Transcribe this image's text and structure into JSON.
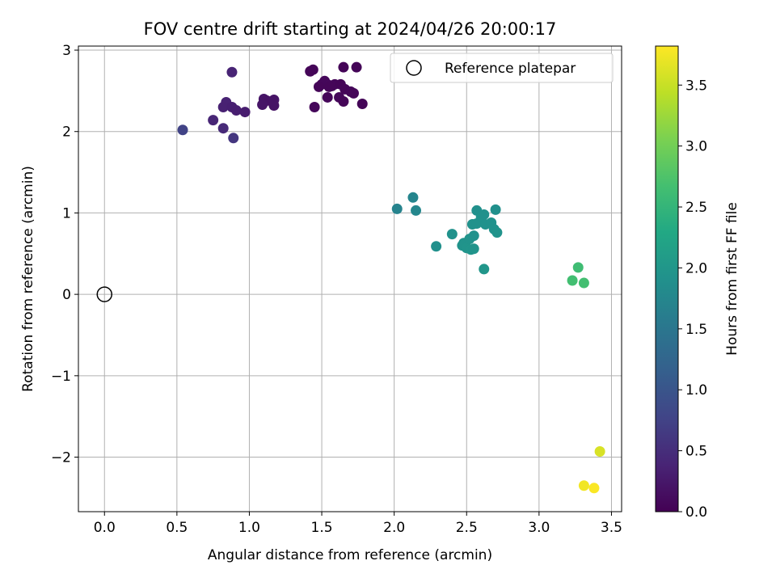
{
  "chart_data": {
    "type": "scatter",
    "title": "FOV centre drift starting at 2024/04/26 20:00:17",
    "xlabel": "Angular distance from reference (arcmin)",
    "ylabel": "Rotation from reference (arcmin)",
    "xlim": [
      -0.18,
      3.57
    ],
    "ylim": [
      -2.67,
      3.05
    ],
    "xticks": [
      0.0,
      0.5,
      1.0,
      1.5,
      2.0,
      2.5,
      3.0,
      3.5
    ],
    "xtick_labels": [
      "0.0",
      "0.5",
      "1.0",
      "1.5",
      "2.0",
      "2.5",
      "3.0",
      "3.5"
    ],
    "yticks": [
      -2,
      -1,
      0,
      1,
      2,
      3
    ],
    "ytick_labels": [
      "−2",
      "−1",
      "0",
      "1",
      "2",
      "3"
    ],
    "grid": true,
    "legend": {
      "position": "top-right",
      "entries": [
        "Reference platepar"
      ]
    },
    "reference_point": {
      "x": 0.0,
      "y": 0.0
    },
    "colorbar": {
      "label": "Hours from first FF file",
      "colormap": "viridis",
      "range": [
        0.0,
        3.82
      ],
      "ticks": [
        0.0,
        0.5,
        1.0,
        1.5,
        2.0,
        2.5,
        3.0,
        3.5
      ],
      "tick_labels": [
        "0.0",
        "0.5",
        "1.0",
        "1.5",
        "2.0",
        "2.5",
        "3.0",
        "3.5"
      ]
    },
    "points": [
      {
        "x": 1.42,
        "y": 2.74,
        "c": 0.05
      },
      {
        "x": 1.44,
        "y": 2.76,
        "c": 0.05
      },
      {
        "x": 1.65,
        "y": 2.79,
        "c": 0.03
      },
      {
        "x": 1.74,
        "y": 2.79,
        "c": 0.04
      },
      {
        "x": 1.5,
        "y": 2.58,
        "c": 0.06
      },
      {
        "x": 1.52,
        "y": 2.62,
        "c": 0.07
      },
      {
        "x": 1.55,
        "y": 2.57,
        "c": 0.08
      },
      {
        "x": 1.57,
        "y": 2.56,
        "c": 0.05
      },
      {
        "x": 1.59,
        "y": 2.58,
        "c": 0.06
      },
      {
        "x": 1.63,
        "y": 2.58,
        "c": 0.04
      },
      {
        "x": 1.66,
        "y": 2.52,
        "c": 0.05
      },
      {
        "x": 1.7,
        "y": 2.49,
        "c": 0.06
      },
      {
        "x": 1.72,
        "y": 2.47,
        "c": 0.05
      },
      {
        "x": 1.62,
        "y": 2.42,
        "c": 0.07
      },
      {
        "x": 1.65,
        "y": 2.37,
        "c": 0.05
      },
      {
        "x": 1.54,
        "y": 2.42,
        "c": 0.06
      },
      {
        "x": 1.48,
        "y": 2.55,
        "c": 0.05
      },
      {
        "x": 1.45,
        "y": 2.3,
        "c": 0.07
      },
      {
        "x": 1.78,
        "y": 2.34,
        "c": 0.04
      },
      {
        "x": 1.55,
        "y": 2.55,
        "c": 0.05
      },
      {
        "x": 1.1,
        "y": 2.4,
        "c": 0.22
      },
      {
        "x": 1.12,
        "y": 2.38,
        "c": 0.2
      },
      {
        "x": 1.17,
        "y": 2.39,
        "c": 0.21
      },
      {
        "x": 1.09,
        "y": 2.33,
        "c": 0.22
      },
      {
        "x": 1.17,
        "y": 2.32,
        "c": 0.2
      },
      {
        "x": 0.88,
        "y": 2.73,
        "c": 0.38
      },
      {
        "x": 0.84,
        "y": 2.36,
        "c": 0.36
      },
      {
        "x": 0.82,
        "y": 2.3,
        "c": 0.35
      },
      {
        "x": 0.88,
        "y": 2.3,
        "c": 0.33
      },
      {
        "x": 0.91,
        "y": 2.26,
        "c": 0.32
      },
      {
        "x": 0.97,
        "y": 2.24,
        "c": 0.3
      },
      {
        "x": 0.75,
        "y": 2.14,
        "c": 0.4
      },
      {
        "x": 0.82,
        "y": 2.04,
        "c": 0.45
      },
      {
        "x": 0.89,
        "y": 1.92,
        "c": 0.6
      },
      {
        "x": 0.54,
        "y": 2.02,
        "c": 0.75
      },
      {
        "x": 2.02,
        "y": 1.05,
        "c": 1.7
      },
      {
        "x": 2.13,
        "y": 1.19,
        "c": 1.72
      },
      {
        "x": 2.15,
        "y": 1.03,
        "c": 1.75
      },
      {
        "x": 2.29,
        "y": 0.59,
        "c": 1.9
      },
      {
        "x": 2.4,
        "y": 0.74,
        "c": 1.92
      },
      {
        "x": 2.47,
        "y": 0.6,
        "c": 1.95
      },
      {
        "x": 2.48,
        "y": 0.63,
        "c": 1.94
      },
      {
        "x": 2.5,
        "y": 0.57,
        "c": 1.96
      },
      {
        "x": 2.52,
        "y": 0.68,
        "c": 1.94
      },
      {
        "x": 2.53,
        "y": 0.55,
        "c": 1.97
      },
      {
        "x": 2.55,
        "y": 0.56,
        "c": 1.96
      },
      {
        "x": 2.54,
        "y": 0.86,
        "c": 1.93
      },
      {
        "x": 2.57,
        "y": 0.87,
        "c": 1.92
      },
      {
        "x": 2.57,
        "y": 1.03,
        "c": 1.9
      },
      {
        "x": 2.6,
        "y": 0.95,
        "c": 1.92
      },
      {
        "x": 2.62,
        "y": 0.98,
        "c": 1.91
      },
      {
        "x": 2.63,
        "y": 0.86,
        "c": 1.93
      },
      {
        "x": 2.67,
        "y": 0.88,
        "c": 1.92
      },
      {
        "x": 2.69,
        "y": 0.8,
        "c": 1.93
      },
      {
        "x": 2.71,
        "y": 0.76,
        "c": 1.94
      },
      {
        "x": 2.7,
        "y": 1.04,
        "c": 1.9
      },
      {
        "x": 2.55,
        "y": 0.72,
        "c": 1.93
      },
      {
        "x": 2.62,
        "y": 0.31,
        "c": 2.0
      },
      {
        "x": 3.23,
        "y": 0.17,
        "c": 2.65
      },
      {
        "x": 3.27,
        "y": 0.33,
        "c": 2.62
      },
      {
        "x": 3.31,
        "y": 0.14,
        "c": 2.66
      },
      {
        "x": 3.42,
        "y": -1.93,
        "c": 3.6
      },
      {
        "x": 3.31,
        "y": -2.35,
        "c": 3.75
      },
      {
        "x": 3.38,
        "y": -2.38,
        "c": 3.8
      }
    ]
  }
}
